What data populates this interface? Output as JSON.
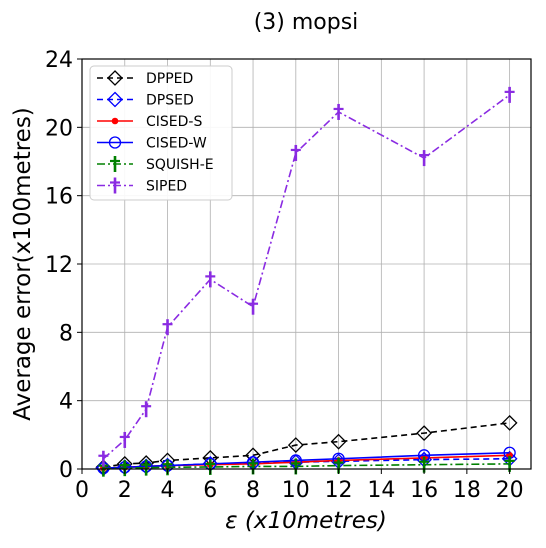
{
  "chart_data": {
    "type": "line",
    "title": "(3) mopsi",
    "xlabel": "ε (x10metres)",
    "ylabel": "Average error(x100metres)",
    "xlim": [
      0,
      21
    ],
    "ylim": [
      0,
      24
    ],
    "xticks": [
      0,
      2,
      4,
      6,
      8,
      10,
      12,
      14,
      16,
      18,
      20
    ],
    "yticks": [
      0,
      4,
      8,
      12,
      16,
      20,
      24
    ],
    "grid": true,
    "legend_position": "top-left",
    "x": [
      1,
      2,
      3,
      4,
      6,
      8,
      10,
      12,
      16,
      20
    ],
    "series": [
      {
        "name": "DPPED",
        "color": "#000000",
        "dash": "dashed",
        "marker": "diamond",
        "values": [
          0.1,
          0.3,
          0.35,
          0.5,
          0.65,
          0.8,
          1.4,
          1.6,
          2.1,
          2.7
        ]
      },
      {
        "name": "DPSED",
        "color": "#0000ff",
        "dash": "dashed",
        "marker": "diamond",
        "values": [
          0.05,
          0.1,
          0.15,
          0.2,
          0.3,
          0.35,
          0.4,
          0.45,
          0.55,
          0.6
        ]
      },
      {
        "name": "CISED-S",
        "color": "#ff0000",
        "dash": "solid",
        "marker": "dot",
        "values": [
          0.05,
          0.1,
          0.15,
          0.2,
          0.25,
          0.3,
          0.4,
          0.5,
          0.65,
          0.8
        ]
      },
      {
        "name": "CISED-W",
        "color": "#0000ff",
        "dash": "solid",
        "marker": "circle",
        "values": [
          0.05,
          0.1,
          0.15,
          0.2,
          0.3,
          0.4,
          0.5,
          0.6,
          0.8,
          0.95
        ]
      },
      {
        "name": "SQUISH-E",
        "color": "#008000",
        "dash": "dashdot",
        "marker": "dagger",
        "values": [
          0.02,
          0.05,
          0.08,
          0.1,
          0.12,
          0.15,
          0.15,
          0.2,
          0.25,
          0.3
        ]
      },
      {
        "name": "SIPED",
        "color": "#8a2be2",
        "dash": "dashdot",
        "marker": "dagger",
        "values": [
          0.6,
          1.7,
          3.5,
          8.3,
          11.1,
          9.5,
          18.5,
          20.9,
          18.2,
          21.9
        ]
      }
    ]
  }
}
